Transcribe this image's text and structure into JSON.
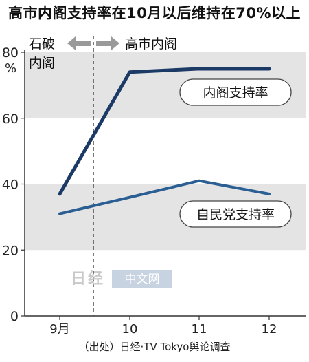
{
  "title": "高市内阁支持率在10月以后维持在70%以上",
  "source": "（出处）日经·TV Tokyo舆论调查",
  "watermark": {
    "logo_text": "日经",
    "site_text": "中文网"
  },
  "annotations": {
    "left_label_line1": "石破",
    "left_label_line2": "内阁",
    "right_label": "高市内阁"
  },
  "colors": {
    "cabinet_line": "#1c3a66",
    "party_line": "#2b5f93",
    "band": "#e4e4e4",
    "arrow": "#9a9a9a",
    "axis": "#333333"
  },
  "chart_data": {
    "type": "line",
    "title": "高市内阁支持率在10月以后维持在70%以上",
    "categories": [
      "9月",
      "10",
      "11",
      "12"
    ],
    "ylabel_top": "80",
    "ylabel_unit": "%",
    "ylim": [
      0,
      80
    ],
    "yticks": [
      0,
      20,
      40,
      60,
      80
    ],
    "shaded_bands": [
      [
        20,
        40
      ],
      [
        60,
        80
      ]
    ],
    "divider_between": [
      "9月",
      "10"
    ],
    "series": [
      {
        "name": "内阁支持率",
        "values": [
          37,
          74,
          75,
          75
        ]
      },
      {
        "name": "自民党支持率",
        "values": [
          31,
          36,
          41,
          37
        ]
      }
    ]
  }
}
